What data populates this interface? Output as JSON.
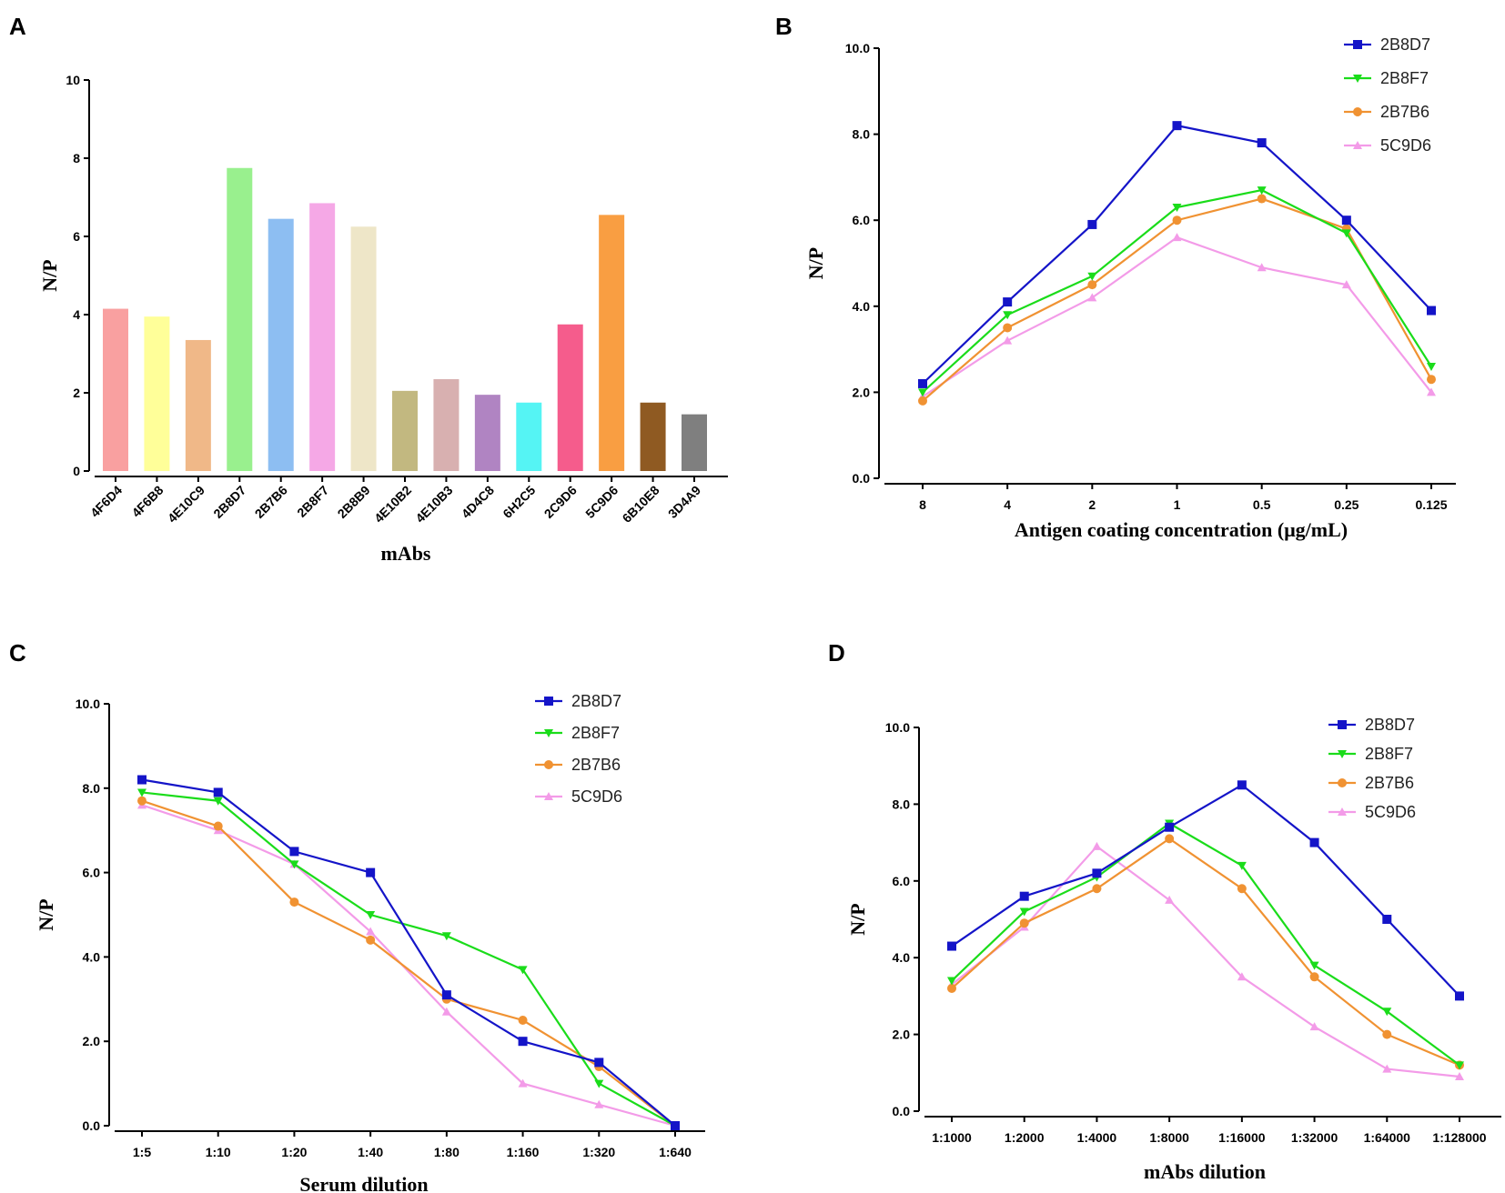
{
  "chart_data": [
    {
      "type": "bar",
      "panel": "A",
      "xlabel": "mAbs",
      "ylabel": "N/P",
      "ylim": [
        0,
        10
      ],
      "yticks": [
        "0",
        "2",
        "4",
        "6",
        "8",
        "10"
      ],
      "categories": [
        "4F6D4",
        "4F6B8",
        "4E10C9",
        "2B8D7",
        "2B7B6",
        "2B8F7",
        "2B8B9",
        "4E10B2",
        "4E10B3",
        "4D4C8",
        "6H2C5",
        "2C9D6",
        "5C9D6",
        "6B10E8",
        "3D4A9"
      ],
      "values": [
        4.15,
        3.95,
        3.35,
        7.75,
        6.45,
        6.85,
        6.25,
        2.05,
        2.35,
        1.95,
        1.75,
        3.75,
        6.55,
        1.75,
        1.45
      ],
      "colors": [
        "#F9A0A0",
        "#FFFF99",
        "#F0B888",
        "#99F08E",
        "#8DBEF2",
        "#F5A8E6",
        "#EEE6C8",
        "#C2B880",
        "#D8B0B0",
        "#B084C2",
        "#55F4F4",
        "#F55C8C",
        "#F99E42",
        "#8F5A22",
        "#7F7F7F"
      ]
    },
    {
      "type": "line",
      "panel": "B",
      "xlabel": "Antigen coating concentration (μg/mL)",
      "ylabel": "N/P",
      "ylim": [
        0,
        10
      ],
      "yticks": [
        "0.0",
        "2.0",
        "4.0",
        "6.0",
        "8.0",
        "10.0"
      ],
      "categories": [
        "8",
        "4",
        "2",
        "1",
        "0.5",
        "0.25",
        "0.125"
      ],
      "series": [
        {
          "name": "2B8D7",
          "color": "#1414C8",
          "marker": "square",
          "values": [
            2.2,
            4.1,
            5.9,
            8.2,
            7.8,
            6.0,
            3.9
          ]
        },
        {
          "name": "2B8F7",
          "color": "#1ADC1A",
          "marker": "triangle-down",
          "values": [
            2.0,
            3.8,
            4.7,
            6.3,
            6.7,
            5.7,
            2.6
          ]
        },
        {
          "name": "2B7B6",
          "color": "#F09232",
          "marker": "circle",
          "values": [
            1.8,
            3.5,
            4.5,
            6.0,
            6.5,
            5.8,
            2.3
          ]
        },
        {
          "name": "5C9D6",
          "color": "#F39BE8",
          "marker": "triangle-up",
          "values": [
            1.9,
            3.2,
            4.2,
            5.6,
            4.9,
            4.5,
            2.0
          ]
        }
      ]
    },
    {
      "type": "line",
      "panel": "C",
      "xlabel": "Serum dilution",
      "ylabel": "N/P",
      "ylim": [
        0,
        10
      ],
      "yticks": [
        "0.0",
        "2.0",
        "4.0",
        "6.0",
        "8.0",
        "10.0"
      ],
      "categories": [
        "1:5",
        "1:10",
        "1:20",
        "1:40",
        "1:80",
        "1:160",
        "1:320",
        "1:640"
      ],
      "series": [
        {
          "name": "2B8D7",
          "color": "#1414C8",
          "marker": "square",
          "values": [
            8.2,
            7.9,
            6.5,
            6.0,
            3.1,
            2.0,
            1.5,
            0.0
          ]
        },
        {
          "name": "2B8F7",
          "color": "#1ADC1A",
          "marker": "triangle-down",
          "values": [
            7.9,
            7.7,
            6.2,
            5.0,
            4.5,
            3.7,
            1.0,
            0.0
          ]
        },
        {
          "name": "2B7B6",
          "color": "#F09232",
          "marker": "circle",
          "values": [
            7.7,
            7.1,
            5.3,
            4.4,
            3.0,
            2.5,
            1.4,
            0.0
          ]
        },
        {
          "name": "5C9D6",
          "color": "#F39BE8",
          "marker": "triangle-up",
          "values": [
            7.6,
            7.0,
            6.2,
            4.6,
            2.7,
            1.0,
            0.5,
            0.0
          ]
        }
      ]
    },
    {
      "type": "line",
      "panel": "D",
      "xlabel": "mAbs dilution",
      "ylabel": "N/P",
      "ylim": [
        0,
        10
      ],
      "yticks": [
        "0.0",
        "2.0",
        "4.0",
        "6.0",
        "8.0",
        "10.0"
      ],
      "categories": [
        "1:1000",
        "1:2000",
        "1:4000",
        "1:8000",
        "1:16000",
        "1:32000",
        "1:64000",
        "1:128000"
      ],
      "series": [
        {
          "name": "2B8D7",
          "color": "#1414C8",
          "marker": "square",
          "values": [
            4.3,
            5.6,
            6.2,
            7.4,
            8.5,
            7.0,
            5.0,
            3.0
          ]
        },
        {
          "name": "2B8F7",
          "color": "#1ADC1A",
          "marker": "triangle-down",
          "values": [
            3.4,
            5.2,
            6.1,
            7.5,
            6.4,
            3.8,
            2.6,
            1.2
          ]
        },
        {
          "name": "2B7B6",
          "color": "#F09232",
          "marker": "circle",
          "values": [
            3.2,
            4.9,
            5.8,
            7.1,
            5.8,
            3.5,
            2.0,
            1.2
          ]
        },
        {
          "name": "5C9D6",
          "color": "#F39BE8",
          "marker": "triangle-up",
          "values": [
            3.3,
            4.8,
            6.9,
            5.5,
            3.5,
            2.2,
            1.1,
            0.9
          ]
        }
      ]
    }
  ]
}
